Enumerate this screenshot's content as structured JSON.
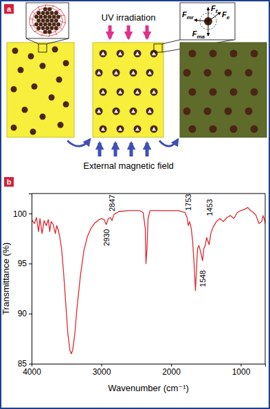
{
  "diagram": {
    "panel_label": "a",
    "top_label": "UV irradiation",
    "bottom_label": "External magnetic field",
    "forces": [
      {
        "symbol": "F",
        "sub": "f"
      },
      {
        "symbol": "F",
        "sub": "e"
      },
      {
        "symbol": "F",
        "sub": "mr"
      },
      {
        "symbol": "F",
        "sub": "ma"
      }
    ]
  },
  "chart_data": {
    "type": "line",
    "panel_label": "b",
    "x_label": "Wavenumber (cm⁻¹)",
    "y_label": "Transmittance (%)",
    "color": "#e0282e",
    "x": [
      4000,
      3960,
      3930,
      3900,
      3880,
      3850,
      3820,
      3790,
      3760,
      3740,
      3720,
      3690,
      3660,
      3640,
      3620,
      3600,
      3570,
      3540,
      3510,
      3480,
      3450,
      3430,
      3410,
      3380,
      3350,
      3300,
      3250,
      3200,
      3150,
      3100,
      3050,
      3000,
      2960,
      2930,
      2900,
      2870,
      2847,
      2820,
      2750,
      2600,
      2450,
      2400,
      2370,
      2360,
      2345,
      2330,
      2300,
      2100,
      1900,
      1800,
      1770,
      1753,
      1735,
      1710,
      1690,
      1670,
      1650,
      1635,
      1620,
      1600,
      1570,
      1548,
      1530,
      1510,
      1490,
      1470,
      1453,
      1430,
      1400,
      1350,
      1300,
      1250,
      1200,
      1150,
      1100,
      1050,
      1000,
      950,
      900,
      860,
      820,
      780,
      740,
      700,
      680,
      660,
      650
    ],
    "values": [
      99.4,
      99.0,
      99.6,
      98.2,
      99.5,
      98.0,
      99.3,
      98.8,
      99.4,
      98.2,
      99.2,
      98.9,
      98.0,
      98.8,
      98.4,
      97.8,
      96.5,
      94.0,
      91.0,
      88.0,
      86.3,
      86.0,
      86.4,
      88.0,
      90.5,
      93.8,
      96.3,
      97.7,
      98.5,
      99.0,
      99.3,
      99.5,
      99.4,
      98.9,
      99.5,
      99.6,
      99.3,
      99.9,
      100.2,
      100.3,
      100.3,
      100.1,
      98.5,
      95.0,
      96.5,
      99.5,
      100.3,
      100.3,
      100.3,
      100.1,
      99.6,
      98.8,
      99.2,
      98.5,
      97.2,
      95.0,
      92.3,
      94.5,
      96.5,
      96.8,
      96.0,
      95.3,
      96.5,
      96.8,
      97.6,
      97.2,
      96.9,
      98.0,
      98.6,
      99.2,
      99.5,
      99.2,
      99.6,
      99.8,
      99.5,
      100.1,
      100.3,
      100.4,
      100.6,
      100.3,
      100.1,
      99.8,
      99.0,
      99.2,
      99.8,
      99.4,
      99.0
    ],
    "xlim": [
      4000,
      650
    ],
    "xticks": [
      4000,
      3000,
      2000,
      1000
    ],
    "ylim": [
      85,
      102
    ],
    "yticks": [
      85,
      90,
      95,
      100
    ],
    "grid": false,
    "annotations": [
      {
        "text": "2930",
        "x": 2930,
        "y": 97.6
      },
      {
        "text": "2847",
        "x": 2847,
        "y": 101.05
      },
      {
        "text": "1753",
        "x": 1753,
        "y": 101.12
      },
      {
        "text": "1548",
        "x": 1548,
        "y": 93.5
      },
      {
        "text": "1453",
        "x": 1453,
        "y": 100.6
      }
    ]
  }
}
